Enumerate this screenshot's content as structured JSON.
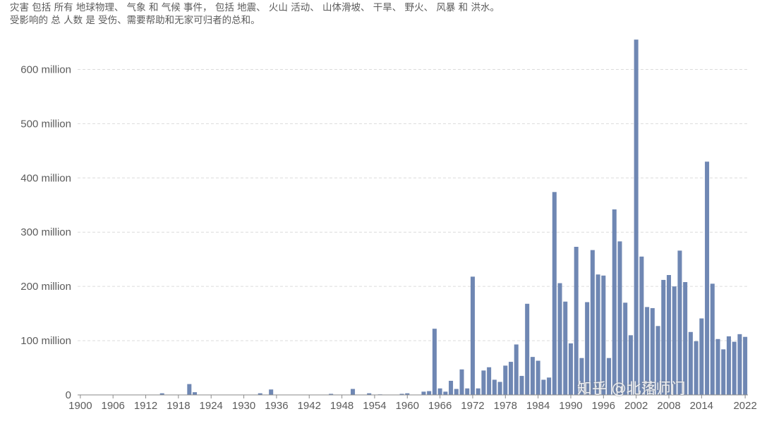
{
  "subtitle": {
    "line1": "灾害 包括 所有 地球物理、 气象 和 气候 事件， 包括 地震、 火山 活动、 山体滑坡、 干旱、 野火、 风暴 和 洪水。",
    "line2": "受影响的 总 人数 是 受伤、需要帮助和无家可归者的总和。"
  },
  "watermark": "知乎 @北落师门",
  "chart_data": {
    "type": "bar",
    "title": "",
    "xlabel": "",
    "ylabel": "",
    "bar_color": "#6f87b3",
    "grid": true,
    "ylim": [
      0,
      650000000
    ],
    "y_ticks": [
      {
        "value": 0,
        "label": "0"
      },
      {
        "value": 100000000,
        "label": "100 million"
      },
      {
        "value": 200000000,
        "label": "200 million"
      },
      {
        "value": 300000000,
        "label": "300 million"
      },
      {
        "value": 400000000,
        "label": "400 million"
      },
      {
        "value": 500000000,
        "label": "500 million"
      },
      {
        "value": 600000000,
        "label": "600 million"
      }
    ],
    "x_range": [
      1900,
      2022
    ],
    "x_tick_labels": [
      "1900",
      "1906",
      "1912",
      "1918",
      "1924",
      "1930",
      "1936",
      "1942",
      "1948",
      "1954",
      "1960",
      "1966",
      "1972",
      "1978",
      "1984",
      "1990",
      "1996",
      "2002",
      "2008",
      "2014",
      "2022"
    ],
    "x": [
      1900,
      1901,
      1902,
      1903,
      1904,
      1905,
      1906,
      1907,
      1908,
      1909,
      1910,
      1911,
      1912,
      1913,
      1914,
      1915,
      1916,
      1917,
      1918,
      1919,
      1920,
      1921,
      1922,
      1923,
      1924,
      1925,
      1926,
      1927,
      1928,
      1929,
      1930,
      1931,
      1932,
      1933,
      1934,
      1935,
      1936,
      1937,
      1938,
      1939,
      1940,
      1941,
      1942,
      1943,
      1944,
      1945,
      1946,
      1947,
      1948,
      1949,
      1950,
      1951,
      1952,
      1953,
      1954,
      1955,
      1956,
      1957,
      1958,
      1959,
      1960,
      1961,
      1962,
      1963,
      1964,
      1965,
      1966,
      1967,
      1968,
      1969,
      1970,
      1971,
      1972,
      1973,
      1974,
      1975,
      1976,
      1977,
      1978,
      1979,
      1980,
      1981,
      1982,
      1983,
      1984,
      1985,
      1986,
      1987,
      1988,
      1989,
      1990,
      1991,
      1992,
      1993,
      1994,
      1995,
      1996,
      1997,
      1998,
      1999,
      2000,
      2001,
      2002,
      2003,
      2004,
      2005,
      2006,
      2007,
      2008,
      2009,
      2010,
      2011,
      2012,
      2013,
      2014,
      2015,
      2016,
      2017,
      2018,
      2019,
      2020,
      2021,
      2022
    ],
    "values": [
      0,
      0,
      0,
      0,
      0,
      0,
      0,
      0,
      0,
      0,
      0,
      0,
      0,
      0,
      0,
      3000000,
      0,
      0,
      0,
      0,
      20000000,
      5000000,
      0,
      0,
      0,
      0,
      0,
      0,
      0,
      0,
      0,
      0,
      0,
      3000000,
      0,
      10000000,
      0,
      0,
      0,
      0,
      0,
      0,
      0,
      0,
      0,
      0,
      2000000,
      0,
      0,
      0,
      11000000,
      0,
      0,
      3000000,
      0,
      1000000,
      0,
      0,
      0,
      2000000,
      3000000,
      0,
      0,
      6000000,
      7000000,
      122000000,
      12000000,
      6000000,
      26000000,
      11000000,
      47000000,
      12000000,
      218000000,
      12000000,
      45000000,
      51000000,
      28000000,
      24000000,
      54000000,
      61000000,
      93000000,
      35000000,
      168000000,
      70000000,
      63000000,
      28000000,
      32000000,
      374000000,
      206000000,
      172000000,
      95000000,
      273000000,
      68000000,
      171000000,
      267000000,
      222000000,
      220000000,
      68000000,
      342000000,
      283000000,
      170000000,
      110000000,
      655000000,
      255000000,
      162000000,
      160000000,
      127000000,
      212000000,
      221000000,
      200000000,
      266000000,
      208000000,
      116000000,
      99000000,
      141000000,
      430000000,
      205000000,
      103000000,
      84000000,
      108000000,
      98000000,
      112000000,
      107000000
    ]
  }
}
